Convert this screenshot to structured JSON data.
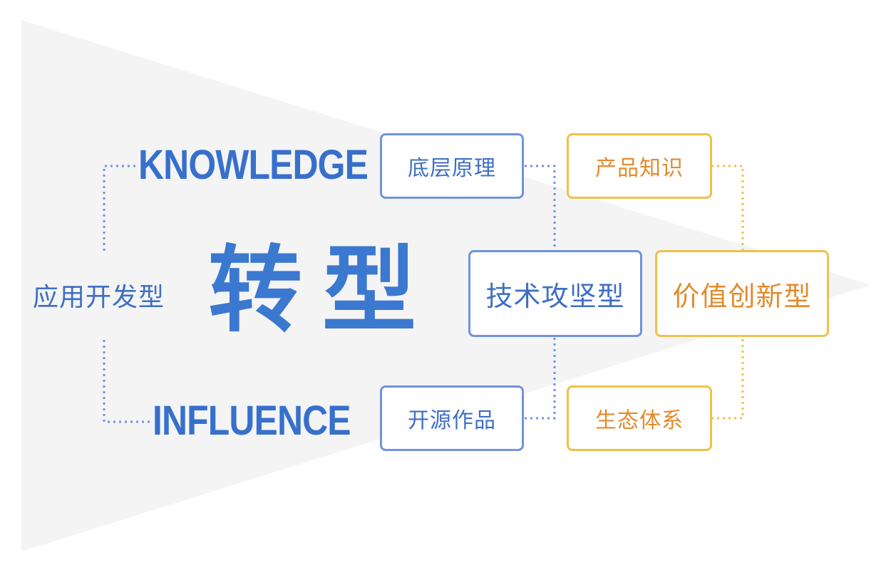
{
  "left_label": "应用开发型",
  "center_title": [
    "转",
    "型"
  ],
  "knowledge": {
    "title": "KNOWLEDGE",
    "blue_item": "底层原理",
    "orange_item": "产品知识"
  },
  "influence": {
    "title": "INFLUENCE",
    "blue_item": "开源作品",
    "orange_item": "生态体系"
  },
  "outcomes": {
    "tech_type": "技术攻坚型",
    "value_type": "价值创新型"
  },
  "colors": {
    "blue_text": "#3f6fc4",
    "blue_border": "#6f93de",
    "orange_text": "#e38a2c",
    "orange_border": "#ecc24a",
    "funnel_bg": "#f4f4f5"
  }
}
